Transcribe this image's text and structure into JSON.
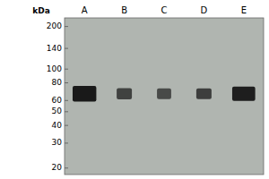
{
  "chart_data": {
    "type": "gel",
    "y_label": "kDa",
    "categories": [
      "A",
      "B",
      "C",
      "D",
      "E"
    ],
    "values": [
      67,
      67,
      67,
      67,
      67
    ],
    "intensity": [
      0.95,
      0.7,
      0.65,
      0.72,
      0.92
    ],
    "width": [
      0.7,
      0.45,
      0.42,
      0.45,
      0.68
    ],
    "thickness": [
      0.055,
      0.04,
      0.038,
      0.038,
      0.05
    ],
    "color": "#111111",
    "log": "y",
    "ylim": [
      18,
      230
    ],
    "yticks": [
      200,
      140,
      100,
      80,
      60,
      50,
      40,
      30,
      20
    ],
    "grid": false
  }
}
